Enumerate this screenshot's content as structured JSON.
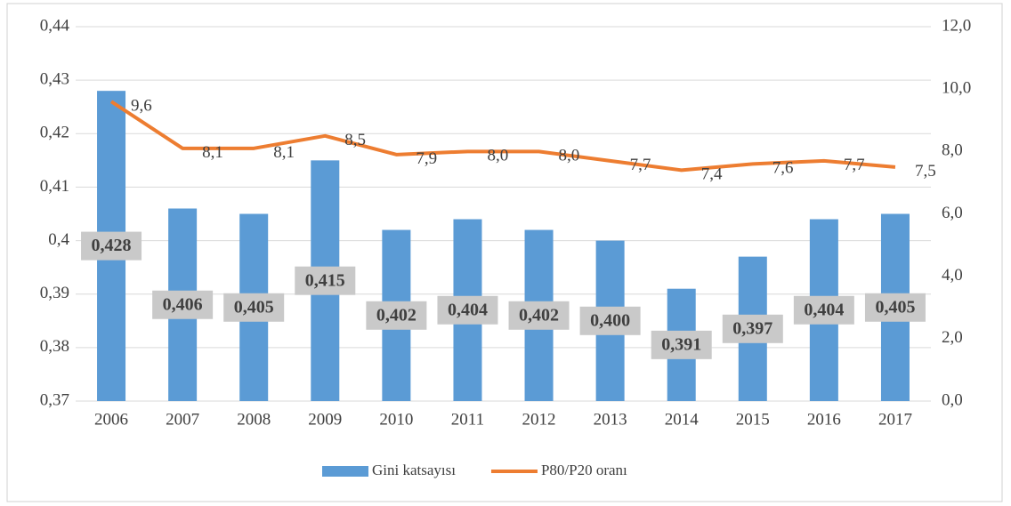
{
  "chart_data": {
    "type": "bar",
    "categories": [
      "2006",
      "2007",
      "2008",
      "2009",
      "2010",
      "2011",
      "2012",
      "2013",
      "2014",
      "2015",
      "2016",
      "2017"
    ],
    "series": [
      {
        "name": "Gini katsayısı",
        "type": "bar",
        "color": "#5b9bd5",
        "values": [
          0.428,
          0.406,
          0.405,
          0.415,
          0.402,
          0.404,
          0.402,
          0.4,
          0.391,
          0.397,
          0.404,
          0.405
        ],
        "value_labels": [
          "0,428",
          "0,406",
          "0,405",
          "0,415",
          "0,402",
          "0,404",
          "0,402",
          "0,400",
          "0,391",
          "0,397",
          "0,404",
          "0,405"
        ]
      },
      {
        "name": "P80/P20 oranı",
        "type": "line",
        "axis": "y2",
        "color": "#ed7d31",
        "values": [
          9.6,
          8.1,
          8.1,
          8.5,
          7.9,
          8.0,
          8.0,
          7.7,
          7.4,
          7.6,
          7.7,
          7.5
        ],
        "value_labels": [
          "9,6",
          "8,1",
          "8,1",
          "8,5",
          "7,9",
          "8,0",
          "8,0",
          "7,7",
          "7,4",
          "7,6",
          "7,7",
          "7,5"
        ]
      }
    ],
    "ylim": [
      0.37,
      0.44
    ],
    "yticks": [
      {
        "value": 0.37,
        "label": "0,37"
      },
      {
        "value": 0.38,
        "label": "0,38"
      },
      {
        "value": 0.39,
        "label": "0,39"
      },
      {
        "value": 0.4,
        "label": "0,4"
      },
      {
        "value": 0.41,
        "label": "0,41"
      },
      {
        "value": 0.42,
        "label": "0,42"
      },
      {
        "value": 0.43,
        "label": "0,43"
      },
      {
        "value": 0.44,
        "label": "0,44"
      }
    ],
    "y2lim": [
      0,
      12
    ],
    "y2ticks": [
      {
        "value": 0,
        "label": "0,0"
      },
      {
        "value": 2,
        "label": "2,0"
      },
      {
        "value": 4,
        "label": "4,0"
      },
      {
        "value": 6,
        "label": "6,0"
      },
      {
        "value": 8,
        "label": "8,0"
      },
      {
        "value": 10,
        "label": "10,0"
      },
      {
        "value": 12,
        "label": "12,0"
      }
    ],
    "grid": true,
    "legend": "bottom"
  }
}
